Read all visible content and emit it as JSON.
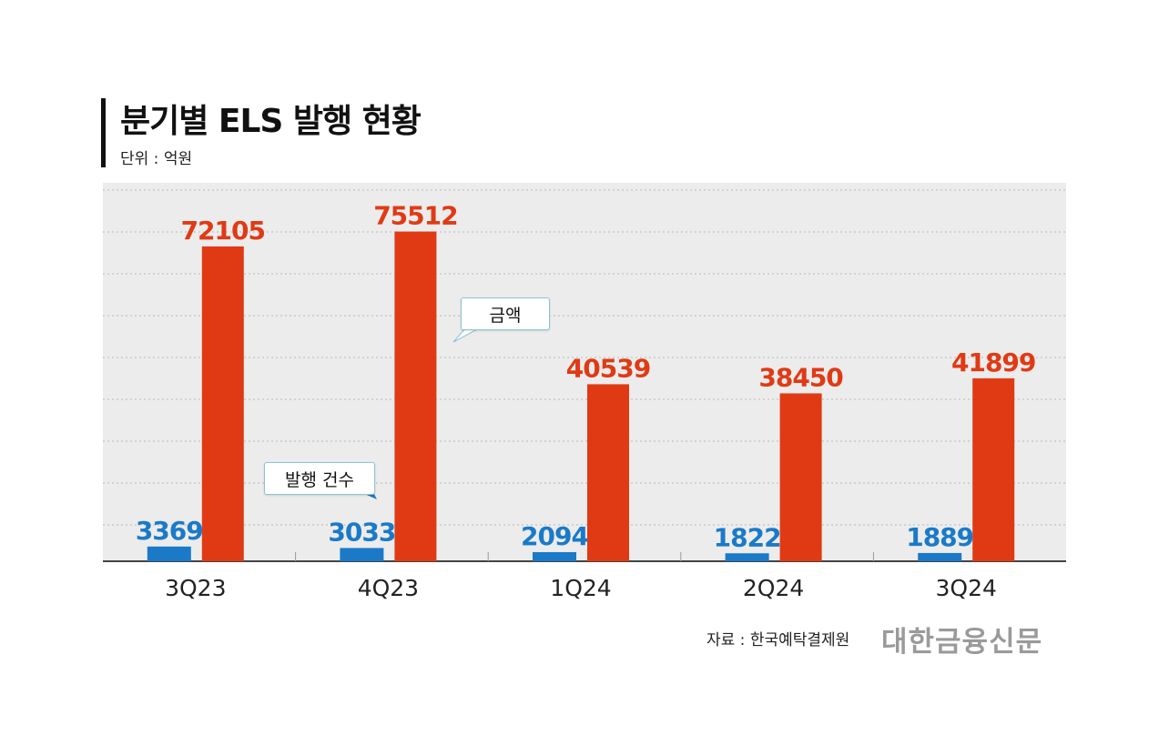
{
  "header": {
    "title": "분기별 ELS 발행 현황",
    "unit": "단위 : 억원"
  },
  "chart_data": {
    "type": "bar",
    "title": "분기별 ELS 발행 현황",
    "unit": "단위 : 억원",
    "categories": [
      "3Q23",
      "4Q23",
      "1Q24",
      "2Q24",
      "3Q24"
    ],
    "series": [
      {
        "name": "발행 건수",
        "values": [
          3369,
          3033,
          2094,
          1822,
          1889
        ],
        "color": "#1a7ac8"
      },
      {
        "name": "금액",
        "values": [
          72105,
          75512,
          40539,
          38450,
          41899
        ],
        "color": "#e03a14"
      }
    ],
    "ylim": [
      0,
      80000
    ],
    "grid": true,
    "gridlines": "dotted"
  },
  "annotations": {
    "amount_label": "금액",
    "count_label": "발행 건수"
  },
  "footer": {
    "source": "자료 : 한국예탁결제원",
    "brand": "대한금융신문"
  }
}
